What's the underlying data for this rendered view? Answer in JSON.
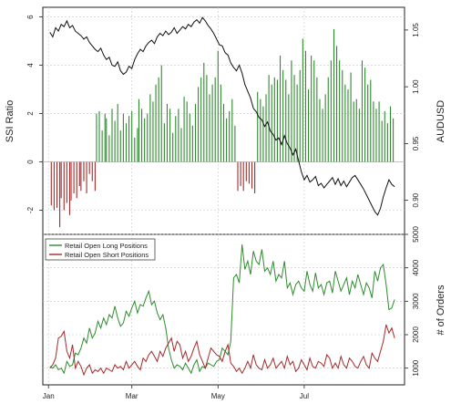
{
  "chart_data": [
    {
      "type": "bar+line",
      "panel": "top",
      "ylabel_left": "SSI Ratio",
      "ylabel_right": "AUDUSD",
      "yticks_left": [
        "-2",
        "0",
        "2",
        "4",
        "6"
      ],
      "ylim_left": [
        -3,
        6.4
      ],
      "yticks_right": [
        "0.90",
        "0.95",
        "1.00",
        "1.05"
      ],
      "ylim_right": [
        0.87,
        1.07
      ],
      "grid": true,
      "colors": {
        "positive": "#2e8b2e",
        "negative": "#a52a2a",
        "price": "#111111"
      },
      "ssi_series": {
        "name": "SSI Ratio",
        "day_offset_note": "day index relative to Jan 1",
        "days": [
          2,
          4,
          6,
          8,
          9,
          11,
          13,
          15,
          16,
          18,
          20,
          22,
          23,
          25,
          27,
          29,
          31,
          33,
          34,
          36,
          38,
          40,
          41,
          43,
          45,
          47,
          49,
          51,
          53,
          55,
          57,
          59,
          61,
          63,
          64,
          66,
          68,
          70,
          72,
          74,
          76,
          78,
          80,
          82,
          84,
          86,
          88,
          90,
          92,
          94,
          96,
          98,
          100,
          102,
          104,
          106,
          108,
          110,
          112,
          114,
          116,
          118,
          120,
          122,
          124,
          126,
          128,
          130,
          132,
          134,
          136,
          138,
          140,
          142,
          144,
          146,
          148,
          150,
          152,
          154,
          156,
          158,
          160,
          162,
          164,
          166,
          168,
          170,
          172,
          174,
          176,
          178,
          180,
          182,
          184,
          186,
          188,
          190,
          192,
          194,
          196,
          198,
          200,
          202,
          204,
          206,
          208,
          210,
          212,
          214,
          216,
          218,
          220,
          222,
          224,
          226,
          228,
          230,
          232,
          234,
          236,
          238,
          240,
          242,
          244
        ],
        "values": [
          -1.8,
          -2.0,
          -1.9,
          -2.7,
          -1.5,
          -2.0,
          -1.7,
          -2.2,
          -1.6,
          -1.3,
          -1.5,
          -1.0,
          -1.2,
          -0.8,
          -1.3,
          -0.5,
          -0.8,
          -1.2,
          2.0,
          2.1,
          1.3,
          2.0,
          1.8,
          1.1,
          2.2,
          1.7,
          2.4,
          1.3,
          2.0,
          1.6,
          1.9,
          2.1,
          1.0,
          1.4,
          2.6,
          2.2,
          1.8,
          2.0,
          2.8,
          2.5,
          3.2,
          3.5,
          4.0,
          1.6,
          2.4,
          2.2,
          1.2,
          1.9,
          2.2,
          1.4,
          2.7,
          2.5,
          2.0,
          1.5,
          2.4,
          3.1,
          3.5,
          4.1,
          3.6,
          2.8,
          3.2,
          3.5,
          4.6,
          3.2,
          2.4,
          1.8,
          2.1,
          2.6,
          1.5,
          -1.2,
          -1.0,
          -1.2,
          -0.8,
          -0.9,
          -1.1,
          -1.3,
          2.9,
          2.6,
          2.3,
          2.8,
          3.6,
          3.2,
          3.5,
          3.4,
          4.4,
          3.8,
          3.4,
          2.8,
          4.2,
          3.6,
          3.2,
          3.8,
          5.1,
          4.6,
          3.0,
          4.4,
          4.2,
          3.5,
          2.6,
          2.2,
          2.8,
          3.5,
          4.2,
          5.5,
          4.8,
          4.2,
          3.8,
          3.2,
          3.0,
          3.7,
          2.5,
          2.6,
          2.2,
          4.2,
          3.9,
          3.2,
          3.4,
          2.5,
          2.2,
          2.5,
          1.7,
          2.1,
          1.6,
          2.3,
          1.8
        ]
      },
      "price_series": {
        "name": "AUDUSD",
        "days": [
          1,
          3,
          5,
          7,
          9,
          11,
          13,
          15,
          17,
          19,
          21,
          23,
          25,
          27,
          29,
          31,
          33,
          35,
          37,
          39,
          41,
          43,
          45,
          47,
          49,
          51,
          53,
          55,
          57,
          59,
          61,
          63,
          65,
          67,
          69,
          71,
          73,
          75,
          77,
          79,
          81,
          83,
          85,
          87,
          89,
          91,
          93,
          95,
          97,
          99,
          101,
          103,
          105,
          107,
          109,
          111,
          113,
          115,
          117,
          119,
          121,
          123,
          125,
          127,
          129,
          131,
          133,
          135,
          137,
          139,
          141,
          143,
          145,
          147,
          149,
          151,
          153,
          155,
          157,
          159,
          161,
          163,
          165,
          167,
          169,
          171,
          173,
          175,
          177,
          179,
          181,
          183,
          185,
          187,
          189,
          191,
          193,
          195,
          197,
          199,
          201,
          203,
          205,
          207,
          209,
          211,
          213,
          215,
          217,
          219,
          221,
          223,
          225,
          227,
          229,
          231,
          233,
          235,
          237,
          239,
          241,
          243,
          245
        ],
        "values": [
          1.048,
          1.044,
          1.052,
          1.049,
          1.055,
          1.053,
          1.058,
          1.052,
          1.054,
          1.049,
          1.047,
          1.045,
          1.042,
          1.044,
          1.039,
          1.036,
          1.033,
          1.031,
          1.034,
          1.028,
          1.024,
          1.026,
          1.019,
          1.018,
          1.022,
          1.014,
          1.011,
          1.013,
          1.018,
          1.016,
          1.024,
          1.029,
          1.033,
          1.031,
          1.036,
          1.039,
          1.041,
          1.038,
          1.044,
          1.047,
          1.045,
          1.049,
          1.046,
          1.048,
          1.052,
          1.047,
          1.05,
          1.053,
          1.051,
          1.055,
          1.053,
          1.057,
          1.059,
          1.056,
          1.061,
          1.058,
          1.054,
          1.051,
          1.047,
          1.042,
          1.037,
          1.036,
          1.03,
          1.028,
          1.021,
          1.017,
          1.014,
          1.019,
          1.012,
          1.002,
          0.996,
          0.99,
          0.981,
          0.978,
          0.973,
          0.971,
          0.965,
          0.969,
          0.961,
          0.958,
          0.953,
          0.955,
          0.949,
          0.957,
          0.95,
          0.946,
          0.94,
          0.945,
          0.935,
          0.925,
          0.918,
          0.922,
          0.916,
          0.918,
          0.921,
          0.913,
          0.915,
          0.911,
          0.914,
          0.917,
          0.92,
          0.914,
          0.919,
          0.913,
          0.917,
          0.912,
          0.916,
          0.92,
          0.922,
          0.918,
          0.914,
          0.91,
          0.905,
          0.9,
          0.895,
          0.89,
          0.887,
          0.893,
          0.903,
          0.911,
          0.918,
          0.914,
          0.912
        ]
      }
    },
    {
      "type": "line",
      "panel": "bottom",
      "ylabel_right": "# of Orders",
      "yticks_right": [
        "1000",
        "2000",
        "3000",
        "4000",
        "5000"
      ],
      "ylim_right": [
        500,
        5000
      ],
      "xticks": [
        "Jan",
        "Mar",
        "May",
        "Jul"
      ],
      "xtick_days": [
        0,
        59,
        120,
        181
      ],
      "xlim_days": [
        -4,
        252
      ],
      "grid": true,
      "legend_position": "top-left",
      "series": [
        {
          "name": "Retail Open Long Positions",
          "color": "#2e8b2e",
          "days": [
            1,
            3,
            5,
            7,
            9,
            11,
            13,
            15,
            17,
            19,
            21,
            23,
            25,
            27,
            29,
            31,
            33,
            35,
            37,
            39,
            41,
            43,
            45,
            47,
            49,
            51,
            53,
            55,
            57,
            59,
            61,
            63,
            65,
            67,
            69,
            71,
            73,
            75,
            77,
            79,
            81,
            83,
            85,
            87,
            89,
            91,
            93,
            95,
            97,
            99,
            101,
            103,
            105,
            107,
            109,
            111,
            113,
            115,
            117,
            119,
            121,
            123,
            125,
            127,
            129,
            131,
            133,
            135,
            137,
            139,
            141,
            143,
            145,
            147,
            149,
            151,
            153,
            155,
            157,
            159,
            161,
            163,
            165,
            167,
            169,
            171,
            173,
            175,
            177,
            179,
            181,
            183,
            185,
            187,
            189,
            191,
            193,
            195,
            197,
            199,
            201,
            203,
            205,
            207,
            209,
            211,
            213,
            215,
            217,
            219,
            221,
            223,
            225,
            227,
            229,
            231,
            233,
            235,
            237,
            239,
            241,
            243,
            245
          ],
          "values": [
            1050,
            1000,
            1100,
            950,
            1000,
            850,
            1200,
            1050,
            1100,
            1450,
            1400,
            1600,
            1900,
            1750,
            2200,
            1900,
            2050,
            2400,
            2200,
            2500,
            2300,
            2600,
            2500,
            2850,
            2500,
            2250,
            2350,
            2700,
            2550,
            2800,
            3000,
            2650,
            2900,
            2850,
            3100,
            3300,
            2900,
            3000,
            2650,
            2450,
            2600,
            2200,
            1600,
            1250,
            1000,
            1100,
            1050,
            950,
            1150,
            1000,
            850,
            1100,
            1250,
            900,
            1050,
            1000,
            1150,
            1100,
            1050,
            1200,
            1250,
            1600,
            1500,
            1400,
            1800,
            3700,
            3800,
            3550,
            4700,
            3950,
            4200,
            3800,
            4500,
            4200,
            4100,
            4550,
            3900,
            4000,
            3800,
            4200,
            3600,
            3800,
            3700,
            4200,
            3400,
            3550,
            3200,
            3500,
            3600,
            3400,
            3300,
            3900,
            3500,
            3300,
            3850,
            3400,
            3500,
            3200,
            3550,
            3600,
            3250,
            3900,
            3600,
            3300,
            3500,
            3700,
            3200,
            3600,
            3400,
            3800,
            3500,
            3200,
            3550,
            3400,
            3100,
            3900,
            3600,
            4000,
            4100,
            3500,
            2750,
            2800,
            3050
          ]
        },
        {
          "name": "Retail Open Short Positions",
          "color": "#a52a2a",
          "days": [
            1,
            3,
            5,
            7,
            9,
            11,
            13,
            15,
            17,
            19,
            21,
            23,
            25,
            27,
            29,
            31,
            33,
            35,
            37,
            39,
            41,
            43,
            45,
            47,
            49,
            51,
            53,
            55,
            57,
            59,
            61,
            63,
            65,
            67,
            69,
            71,
            73,
            75,
            77,
            79,
            81,
            83,
            85,
            87,
            89,
            91,
            93,
            95,
            97,
            99,
            101,
            103,
            105,
            107,
            109,
            111,
            113,
            115,
            117,
            119,
            121,
            123,
            125,
            127,
            129,
            131,
            133,
            135,
            137,
            139,
            141,
            143,
            145,
            147,
            149,
            151,
            153,
            155,
            157,
            159,
            161,
            163,
            165,
            167,
            169,
            171,
            173,
            175,
            177,
            179,
            181,
            183,
            185,
            187,
            189,
            191,
            193,
            195,
            197,
            199,
            201,
            203,
            205,
            207,
            209,
            211,
            213,
            215,
            217,
            219,
            221,
            223,
            225,
            227,
            229,
            231,
            233,
            235,
            237,
            239,
            241,
            243,
            245
          ],
          "values": [
            1000,
            1100,
            1300,
            1900,
            1950,
            2100,
            1500,
            1300,
            1700,
            1000,
            1200,
            1050,
            800,
            1000,
            1100,
            850,
            950,
            900,
            1000,
            850,
            1000,
            950,
            900,
            1100,
            1000,
            1050,
            950,
            1200,
            1000,
            1100,
            1200,
            1050,
            950,
            1300,
            1200,
            1400,
            1500,
            1350,
            1200,
            1500,
            1350,
            1600,
            1750,
            1900,
            1500,
            1800,
            1700,
            1300,
            1500,
            1200,
            1350,
            1600,
            1800,
            1400,
            1200,
            1000,
            1300,
            1600,
            1500,
            1400,
            1350,
            1200,
            1500,
            1700,
            1150,
            1050,
            900,
            1000,
            850,
            1000,
            1200,
            1000,
            1400,
            1100,
            1000,
            950,
            1250,
            1000,
            1100,
            1300,
            1000,
            1100,
            1200,
            1000,
            1350,
            1100,
            1200,
            900,
            1000,
            1250,
            1100,
            950,
            1300,
            1050,
            1000,
            1200,
            1150,
            1050,
            1400,
            1300,
            1000,
            1150,
            1000,
            1350,
            1100,
            1000,
            1300,
            1200,
            1050,
            1000,
            1200,
            1350,
            1100,
            1000,
            1450,
            1300,
            1200,
            1500,
            1800,
            2300,
            2050,
            2200,
            1900
          ]
        }
      ]
    }
  ]
}
